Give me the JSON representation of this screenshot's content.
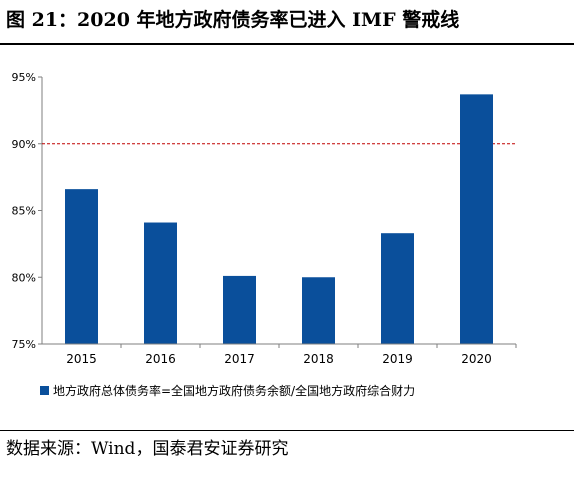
{
  "title": "图 21：2020 年地方政府债务率已进入 IMF 警戒线",
  "source": "数据来源：Wind，国泰君安证券研究",
  "colors": {
    "bar": "#0a4f9b",
    "threshold": "#c00000",
    "axis": "#7f7f7f"
  },
  "chart_data": {
    "type": "bar",
    "categories": [
      "2015",
      "2016",
      "2017",
      "2018",
      "2019",
      "2020"
    ],
    "series": [
      {
        "name": "地方政府总体债务率=全国地方政府债务余额/全国地方政府综合财力",
        "values": [
          86.6,
          84.1,
          80.1,
          80.0,
          83.3,
          93.7
        ]
      }
    ],
    "ylim": [
      75,
      95
    ],
    "yticks": [
      "75%",
      "80%",
      "85%",
      "90%",
      "95%"
    ],
    "ytick_values": [
      75,
      80,
      85,
      90,
      95
    ],
    "reference_line": {
      "value": 90,
      "style": "dashed"
    },
    "legend_position": "bottom-left",
    "grid": false,
    "xlabel": "",
    "ylabel": ""
  }
}
